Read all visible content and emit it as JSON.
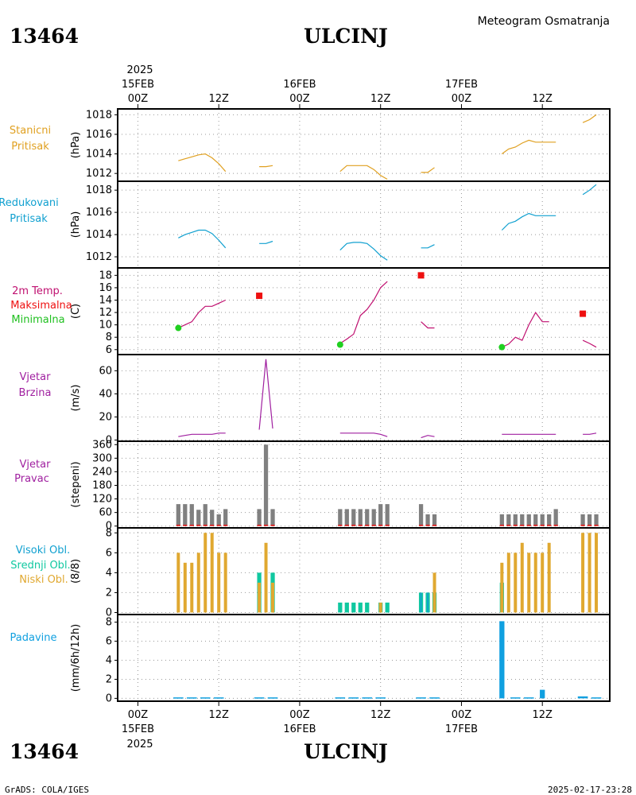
{
  "header": {
    "station_id": "13464",
    "station_name": "ULCINJ",
    "product": "Meteogram Osmatranja"
  },
  "footer": {
    "credit": "GrADS: COLA/IGES",
    "timestamp": "2025-02-17-23:28"
  },
  "time_axis": {
    "year": "2025",
    "ticks": [
      {
        "h": 0,
        "label": "00Z",
        "date": "15FEB"
      },
      {
        "h": 12,
        "label": "12Z"
      },
      {
        "h": 24,
        "label": "00Z",
        "date": "16FEB"
      },
      {
        "h": 36,
        "label": "12Z"
      },
      {
        "h": 48,
        "label": "00Z",
        "date": "17FEB"
      },
      {
        "h": 60,
        "label": "12Z"
      }
    ],
    "range_hours": [
      -3,
      70
    ]
  },
  "colors": {
    "pressure": "#e0a020",
    "reduced": "#10a0d0",
    "temp_label": "#c01070",
    "tmax": "#ee1010",
    "tmin": "#20d020",
    "wind": "#a020a0",
    "winddir_bar": "#808080",
    "cloud_low": "#e0a830",
    "cloud_mid": "#10c8a0",
    "cloud_high": "#10a0d0",
    "precip": "#10a0e0",
    "grid": "#999999"
  },
  "panels": {
    "station_pressure": {
      "label1": "Stanicni",
      "label2": "Pritisak",
      "unit": "(hPa)"
    },
    "reduced_pressure": {
      "label1": "Redukovani",
      "label2": "Pritisak",
      "unit": "(hPa)"
    },
    "temperature": {
      "label1": "2m Temp.",
      "label2": "Maksimalna",
      "label3": "Minimalna",
      "unit": "(C)"
    },
    "wind_speed": {
      "label1": "Vjetar",
      "label2": "Brzina",
      "unit": "(m/s)"
    },
    "wind_dir": {
      "label1": "Vjetar",
      "label2": "Pravac",
      "unit": "(stepeni)"
    },
    "clouds": {
      "label1": "Visoki Obl.",
      "label2": "Srednji Obl.",
      "label3": "Niski Obl.",
      "unit": "(8/8)"
    },
    "precip": {
      "label1": "Padavine",
      "unit": "(mm/6h/12h)"
    }
  },
  "chart_data": [
    {
      "type": "line",
      "name": "Stanicni Pritisak",
      "ylabel": "(hPa)",
      "ylim": [
        1011.2,
        1018.6
      ],
      "yticks": [
        1012,
        1014,
        1016,
        1018
      ],
      "segments": [
        [
          [
            6,
            1013.3
          ],
          [
            7,
            1013.5
          ],
          [
            8,
            1013.7
          ],
          [
            9,
            1013.9
          ],
          [
            10,
            1014.0
          ],
          [
            11,
            1013.6
          ],
          [
            12,
            1013.0
          ],
          [
            13,
            1012.2
          ]
        ],
        [
          [
            18,
            1012.7
          ],
          [
            19,
            1012.7
          ],
          [
            20,
            1012.8
          ]
        ],
        [
          [
            30,
            1012.2
          ],
          [
            31,
            1012.8
          ],
          [
            32,
            1012.8
          ],
          [
            33,
            1012.8
          ],
          [
            34,
            1012.8
          ],
          [
            35,
            1012.4
          ],
          [
            36,
            1011.8
          ],
          [
            37,
            1011.4
          ]
        ],
        [
          [
            42,
            1012.1
          ],
          [
            43,
            1012.1
          ],
          [
            44,
            1012.6
          ]
        ],
        [
          [
            54,
            1014.0
          ],
          [
            55,
            1014.5
          ],
          [
            56,
            1014.7
          ],
          [
            57,
            1015.1
          ],
          [
            58,
            1015.4
          ],
          [
            59,
            1015.2
          ],
          [
            60,
            1015.2
          ],
          [
            61,
            1015.2
          ],
          [
            62,
            1015.2
          ]
        ],
        [
          [
            66,
            1017.2
          ],
          [
            67,
            1017.5
          ],
          [
            68,
            1018.0
          ]
        ]
      ]
    },
    {
      "type": "line",
      "name": "Redukovani Pritisak",
      "ylabel": "(hPa)",
      "ylim": [
        1011.0,
        1018.8
      ],
      "yticks": [
        1012,
        1014,
        1016,
        1018
      ],
      "segments": [
        [
          [
            6,
            1013.7
          ],
          [
            7,
            1014.0
          ],
          [
            8,
            1014.2
          ],
          [
            9,
            1014.4
          ],
          [
            10,
            1014.4
          ],
          [
            11,
            1014.1
          ],
          [
            12,
            1013.5
          ],
          [
            13,
            1012.8
          ]
        ],
        [
          [
            18,
            1013.2
          ],
          [
            19,
            1013.2
          ],
          [
            20,
            1013.4
          ]
        ],
        [
          [
            30,
            1012.6
          ],
          [
            31,
            1013.2
          ],
          [
            32,
            1013.3
          ],
          [
            33,
            1013.3
          ],
          [
            34,
            1013.2
          ],
          [
            35,
            1012.7
          ],
          [
            36,
            1012.1
          ],
          [
            37,
            1011.7
          ]
        ],
        [
          [
            42,
            1012.8
          ],
          [
            43,
            1012.8
          ],
          [
            44,
            1013.1
          ]
        ],
        [
          [
            54,
            1014.4
          ],
          [
            55,
            1015.0
          ],
          [
            56,
            1015.2
          ],
          [
            57,
            1015.6
          ],
          [
            58,
            1015.9
          ],
          [
            59,
            1015.7
          ],
          [
            60,
            1015.7
          ],
          [
            61,
            1015.7
          ],
          [
            62,
            1015.7
          ]
        ],
        [
          [
            66,
            1017.6
          ],
          [
            67,
            1018.0
          ],
          [
            68,
            1018.5
          ]
        ]
      ]
    },
    {
      "type": "line",
      "name": "2m Temp.",
      "ylabel": "(C)",
      "ylim": [
        5.2,
        19.2
      ],
      "yticks": [
        6,
        8,
        10,
        12,
        14,
        16,
        18
      ],
      "segments": [
        [
          [
            6,
            9.5
          ],
          [
            7,
            10.0
          ],
          [
            8,
            10.5
          ],
          [
            9,
            12.0
          ],
          [
            10,
            13.0
          ],
          [
            11,
            13.0
          ],
          [
            12,
            13.5
          ],
          [
            13,
            14.0
          ]
        ],
        [
          [
            30,
            7.0
          ],
          [
            31,
            7.7
          ],
          [
            32,
            8.5
          ],
          [
            33,
            11.5
          ],
          [
            34,
            12.5
          ],
          [
            35,
            14.0
          ],
          [
            36,
            16.0
          ],
          [
            37,
            17.0
          ]
        ],
        [
          [
            42,
            10.5
          ],
          [
            43,
            9.5
          ],
          [
            44,
            9.5
          ]
        ],
        [
          [
            54,
            6.4
          ],
          [
            55,
            6.9
          ],
          [
            56,
            8.0
          ],
          [
            57,
            7.5
          ],
          [
            58,
            10.0
          ],
          [
            59,
            12.0
          ],
          [
            60,
            10.5
          ],
          [
            61,
            10.5
          ]
        ],
        [
          [
            66,
            7.5
          ],
          [
            67,
            7.0
          ],
          [
            68,
            6.4
          ]
        ]
      ],
      "maxima": [
        [
          18,
          14.7
        ],
        [
          42,
          18.0
        ],
        [
          66,
          11.8
        ]
      ],
      "minima": [
        [
          6,
          9.5
        ],
        [
          30,
          6.8
        ],
        [
          54,
          6.4
        ]
      ]
    },
    {
      "type": "line",
      "name": "Vjetar Brzina",
      "ylabel": "(m/s)",
      "ylim": [
        -1,
        74
      ],
      "yticks": [
        0,
        20,
        40,
        60
      ],
      "segments": [
        [
          [
            6,
            3
          ],
          [
            7,
            4
          ],
          [
            8,
            5
          ],
          [
            9,
            5
          ],
          [
            10,
            5
          ],
          [
            11,
            5
          ],
          [
            12,
            6
          ],
          [
            13,
            6
          ]
        ],
        [
          [
            18,
            9
          ],
          [
            19,
            70
          ],
          [
            20,
            10
          ]
        ],
        [
          [
            30,
            6
          ],
          [
            31,
            6
          ],
          [
            32,
            6
          ],
          [
            33,
            6
          ],
          [
            34,
            6
          ],
          [
            35,
            6
          ],
          [
            36,
            5
          ],
          [
            37,
            3
          ]
        ],
        [
          [
            42,
            2
          ],
          [
            43,
            4
          ],
          [
            44,
            3
          ]
        ],
        [
          [
            54,
            5
          ],
          [
            55,
            5
          ],
          [
            56,
            5
          ],
          [
            57,
            5
          ],
          [
            58,
            5
          ],
          [
            59,
            5
          ],
          [
            60,
            5
          ],
          [
            61,
            5
          ],
          [
            62,
            5
          ]
        ],
        [
          [
            66,
            5
          ],
          [
            67,
            5
          ],
          [
            68,
            6
          ]
        ]
      ]
    },
    {
      "type": "bar",
      "name": "Vjetar Pravac",
      "ylabel": "(stepeni)",
      "ylim": [
        -8,
        375
      ],
      "yticks": [
        0,
        60,
        120,
        180,
        240,
        300,
        360
      ],
      "values": [
        [
          6,
          97
        ],
        [
          7,
          97
        ],
        [
          8,
          97
        ],
        [
          9,
          72
        ],
        [
          10,
          97
        ],
        [
          11,
          72
        ],
        [
          12,
          52
        ],
        [
          13,
          75
        ],
        [
          18,
          75
        ],
        [
          19,
          360
        ],
        [
          20,
          75
        ],
        [
          30,
          75
        ],
        [
          31,
          75
        ],
        [
          32,
          75
        ],
        [
          33,
          75
        ],
        [
          34,
          75
        ],
        [
          35,
          75
        ],
        [
          36,
          97
        ],
        [
          37,
          97
        ],
        [
          42,
          97
        ],
        [
          43,
          52
        ],
        [
          44,
          52
        ],
        [
          54,
          52
        ],
        [
          55,
          52
        ],
        [
          56,
          52
        ],
        [
          57,
          52
        ],
        [
          58,
          52
        ],
        [
          59,
          52
        ],
        [
          60,
          52
        ],
        [
          61,
          52
        ],
        [
          62,
          75
        ],
        [
          66,
          52
        ],
        [
          67,
          52
        ],
        [
          68,
          52
        ]
      ],
      "marker_level": 3
    },
    {
      "type": "bar",
      "name": "Oblacnost",
      "ylabel": "(8/8)",
      "ylim": [
        -0.2,
        8.5
      ],
      "yticks": [
        0,
        2,
        4,
        6,
        8
      ],
      "series": [
        {
          "name": "Srednji Obl.",
          "values": [
            [
              18,
              4
            ],
            [
              20,
              4
            ],
            [
              30,
              1
            ],
            [
              31,
              1
            ],
            [
              32,
              1
            ],
            [
              33,
              1
            ],
            [
              34,
              1
            ],
            [
              36,
              1
            ],
            [
              37,
              1
            ],
            [
              42,
              2
            ],
            [
              43,
              2
            ],
            [
              44,
              2
            ],
            [
              54,
              3
            ]
          ]
        },
        {
          "name": "Visoki Obl.",
          "values": [
            [
              42,
              2
            ],
            [
              43,
              2
            ]
          ]
        },
        {
          "name": "Niski Obl.",
          "values": [
            [
              6,
              6
            ],
            [
              7,
              5
            ],
            [
              8,
              5
            ],
            [
              9,
              6
            ],
            [
              10,
              8
            ],
            [
              11,
              8
            ],
            [
              12,
              6
            ],
            [
              13,
              6
            ],
            [
              18,
              3
            ],
            [
              19,
              7
            ],
            [
              20,
              3
            ],
            [
              36,
              1
            ],
            [
              44,
              4
            ],
            [
              54,
              5
            ],
            [
              55,
              6
            ],
            [
              56,
              6
            ],
            [
              57,
              7
            ],
            [
              58,
              6
            ],
            [
              59,
              6
            ],
            [
              60,
              6
            ],
            [
              61,
              7
            ],
            [
              66,
              8
            ],
            [
              67,
              8
            ],
            [
              68,
              8
            ]
          ]
        }
      ]
    },
    {
      "type": "bar",
      "name": "Padavine",
      "ylabel": "(mm/6h/12h)",
      "ylim": [
        -0.3,
        8.8
      ],
      "yticks": [
        0,
        2,
        4,
        6,
        8
      ],
      "values": [
        [
          6,
          0.1
        ],
        [
          8,
          0.1
        ],
        [
          10,
          0.1
        ],
        [
          12,
          0.1
        ],
        [
          18,
          0.1
        ],
        [
          20,
          0.1
        ],
        [
          30,
          0.1
        ],
        [
          32,
          0.1
        ],
        [
          34,
          0.1
        ],
        [
          36,
          0.1
        ],
        [
          42,
          0.1
        ],
        [
          44,
          0.1
        ],
        [
          54,
          8.1
        ],
        [
          56,
          0.1
        ],
        [
          58,
          0.1
        ],
        [
          60,
          0.9
        ],
        [
          66,
          0.2
        ],
        [
          68,
          0.1
        ]
      ]
    }
  ]
}
